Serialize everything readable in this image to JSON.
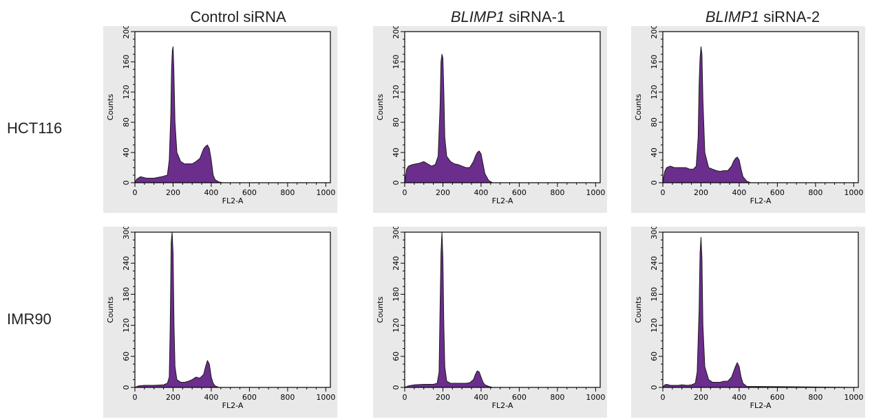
{
  "column_titles": [
    {
      "italic": "",
      "plain": "Control siRNA"
    },
    {
      "italic": "BLIMP1",
      "plain": " siRNA-1"
    },
    {
      "italic": "BLIMP1",
      "plain": " siRNA-2"
    }
  ],
  "row_labels": [
    "HCT116",
    "IMR90"
  ],
  "colors": {
    "fill": "#6b2e8c",
    "edge": "#1a1a1a",
    "panel_bg": "#e9e9e9",
    "plot_bg": "#ffffff"
  },
  "chart_data": [
    {
      "type": "area",
      "row": "HCT116",
      "column": "Control siRNA",
      "xlabel": "FL2-A",
      "ylabel": "Counts",
      "xlim": [
        0,
        1024
      ],
      "ylim": [
        0,
        200
      ],
      "xticks": [
        0,
        200,
        400,
        600,
        800,
        1000
      ],
      "yticks": [
        0,
        40,
        80,
        120,
        160,
        200
      ],
      "x": [
        0,
        10,
        30,
        60,
        100,
        140,
        170,
        180,
        188,
        192,
        196,
        200,
        204,
        210,
        220,
        240,
        260,
        280,
        300,
        320,
        340,
        360,
        370,
        380,
        390,
        400,
        410,
        420,
        440,
        460,
        500,
        1024
      ],
      "y": [
        0,
        5,
        8,
        6,
        6,
        8,
        10,
        30,
        90,
        150,
        175,
        180,
        150,
        80,
        40,
        28,
        25,
        25,
        25,
        28,
        32,
        45,
        48,
        50,
        45,
        30,
        10,
        4,
        1,
        0,
        0,
        0
      ]
    },
    {
      "type": "area",
      "row": "HCT116",
      "column": "BLIMP1 siRNA-1",
      "xlabel": "FL2-A",
      "ylabel": "Counts",
      "xlim": [
        0,
        1024
      ],
      "ylim": [
        0,
        200
      ],
      "xticks": [
        0,
        200,
        400,
        600,
        800,
        1000
      ],
      "yticks": [
        0,
        40,
        80,
        120,
        160,
        200
      ],
      "x": [
        0,
        10,
        20,
        40,
        60,
        80,
        100,
        120,
        140,
        160,
        175,
        185,
        190,
        195,
        200,
        205,
        210,
        220,
        240,
        260,
        280,
        300,
        320,
        340,
        360,
        370,
        380,
        390,
        400,
        410,
        420,
        440,
        460,
        1024
      ],
      "y": [
        0,
        18,
        22,
        24,
        25,
        26,
        28,
        25,
        22,
        24,
        35,
        100,
        160,
        170,
        165,
        120,
        60,
        35,
        28,
        25,
        24,
        22,
        20,
        20,
        28,
        35,
        40,
        42,
        38,
        25,
        12,
        3,
        0,
        0
      ]
    },
    {
      "type": "area",
      "row": "HCT116",
      "column": "BLIMP1 siRNA-2",
      "xlabel": "FL2-A",
      "ylabel": "Counts",
      "xlim": [
        0,
        1024
      ],
      "ylim": [
        0,
        200
      ],
      "xticks": [
        0,
        200,
        400,
        600,
        800,
        1000
      ],
      "yticks": [
        0,
        40,
        80,
        120,
        160,
        200
      ],
      "x": [
        0,
        10,
        20,
        40,
        60,
        80,
        100,
        120,
        140,
        160,
        175,
        185,
        190,
        195,
        200,
        205,
        210,
        220,
        240,
        260,
        280,
        300,
        320,
        340,
        360,
        370,
        380,
        390,
        400,
        410,
        420,
        440,
        460,
        1024
      ],
      "y": [
        0,
        15,
        20,
        22,
        20,
        20,
        20,
        20,
        18,
        18,
        22,
        60,
        130,
        165,
        180,
        170,
        110,
        40,
        20,
        18,
        16,
        15,
        16,
        16,
        22,
        28,
        32,
        34,
        30,
        18,
        8,
        2,
        0,
        0
      ]
    },
    {
      "type": "area",
      "row": "IMR90",
      "column": "Control siRNA",
      "xlabel": "FL2-A",
      "ylabel": "Counts",
      "xlim": [
        0,
        1024
      ],
      "ylim": [
        0,
        300
      ],
      "xticks": [
        0,
        200,
        400,
        600,
        800,
        1000
      ],
      "yticks": [
        0,
        60,
        120,
        180,
        240,
        300
      ],
      "x": [
        0,
        20,
        50,
        100,
        150,
        170,
        180,
        185,
        190,
        195,
        200,
        205,
        210,
        220,
        240,
        260,
        280,
        300,
        320,
        340,
        360,
        370,
        380,
        390,
        400,
        410,
        420,
        440,
        1024
      ],
      "y": [
        0,
        3,
        4,
        4,
        5,
        8,
        20,
        120,
        280,
        300,
        260,
        120,
        40,
        15,
        10,
        10,
        12,
        15,
        20,
        18,
        25,
        40,
        52,
        45,
        20,
        8,
        3,
        0,
        0
      ]
    },
    {
      "type": "area",
      "row": "IMR90",
      "column": "BLIMP1 siRNA-1",
      "xlabel": "FL2-A",
      "ylabel": "Counts",
      "xlim": [
        0,
        1024
      ],
      "ylim": [
        0,
        300
      ],
      "xticks": [
        0,
        200,
        400,
        600,
        800,
        1000
      ],
      "yticks": [
        0,
        60,
        120,
        180,
        240,
        300
      ],
      "x": [
        0,
        20,
        50,
        100,
        150,
        170,
        180,
        185,
        190,
        195,
        200,
        205,
        210,
        220,
        240,
        260,
        280,
        300,
        320,
        340,
        360,
        370,
        380,
        390,
        400,
        410,
        420,
        440,
        460,
        1024
      ],
      "y": [
        0,
        3,
        5,
        6,
        6,
        8,
        30,
        150,
        260,
        300,
        250,
        120,
        40,
        12,
        8,
        8,
        8,
        8,
        8,
        9,
        15,
        25,
        32,
        30,
        20,
        10,
        5,
        2,
        0,
        0
      ]
    },
    {
      "type": "area",
      "row": "IMR90",
      "column": "BLIMP1 siRNA-2",
      "xlabel": "FL2-A",
      "ylabel": "Counts",
      "xlim": [
        0,
        1024
      ],
      "ylim": [
        0,
        300
      ],
      "xticks": [
        0,
        200,
        400,
        600,
        800,
        1000
      ],
      "yticks": [
        0,
        60,
        120,
        180,
        240,
        300
      ],
      "x": [
        0,
        10,
        20,
        40,
        60,
        80,
        100,
        130,
        150,
        170,
        180,
        190,
        195,
        200,
        205,
        210,
        220,
        240,
        260,
        280,
        300,
        320,
        340,
        360,
        370,
        380,
        390,
        400,
        410,
        420,
        440,
        1024
      ],
      "y": [
        0,
        5,
        6,
        4,
        4,
        4,
        5,
        4,
        5,
        8,
        30,
        150,
        260,
        290,
        250,
        120,
        40,
        15,
        10,
        10,
        10,
        12,
        12,
        20,
        30,
        40,
        48,
        40,
        20,
        8,
        2,
        0
      ]
    }
  ]
}
